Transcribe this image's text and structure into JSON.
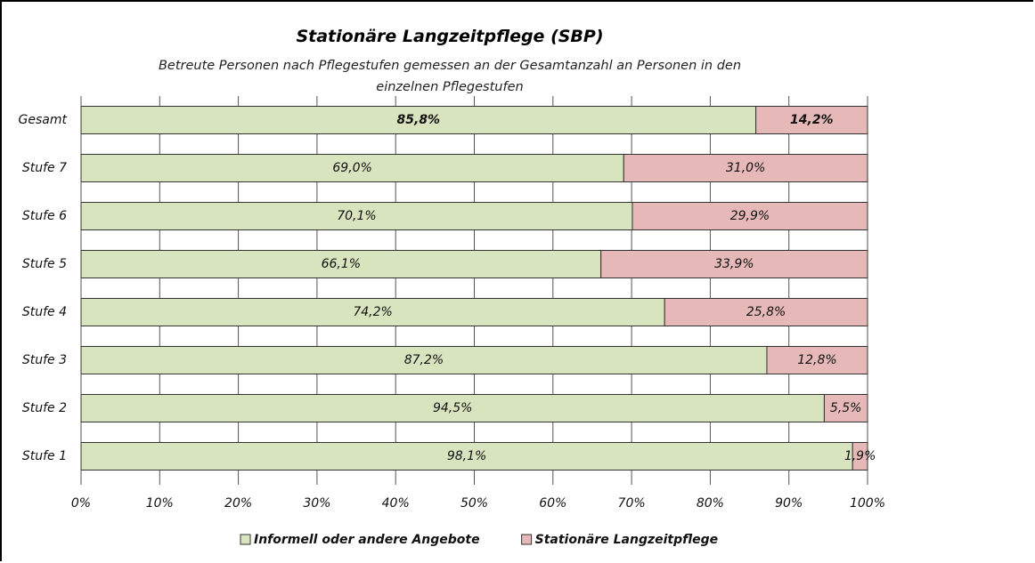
{
  "chart_data": {
    "type": "stacked_barh",
    "title": "Stationäre Langzeitpflege (SBP)",
    "subtitle": "Betreute Personen nach Pflegestufen gemessen an der Gesamtanzahl  an Personen in den einzelnen Pflegestufen",
    "categories": [
      "Gesamt",
      "Stufe 7",
      "Stufe 6",
      "Stufe 5",
      "Stufe 4",
      "Stufe 3",
      "Stufe 2",
      "Stufe 1"
    ],
    "series": [
      {
        "name": "Informell oder andere Angebote",
        "color": "#d7e4bd",
        "values": [
          85.8,
          69.0,
          70.1,
          66.1,
          74.2,
          87.2,
          94.5,
          98.1
        ],
        "value_labels": [
          "85,8%",
          "69,0%",
          "70,1%",
          "66,1%",
          "74,2%",
          "87,2%",
          "94,5%",
          "98,1%"
        ]
      },
      {
        "name": "Stationäre Langzeitpflege",
        "color": "#e6b9b8",
        "values": [
          14.2,
          31.0,
          29.9,
          33.9,
          25.8,
          12.8,
          5.5,
          1.9
        ],
        "value_labels": [
          "14,2%",
          "31,0%",
          "29,9%",
          "33,9%",
          "25,8%",
          "12,8%",
          "5,5%",
          "1,9%"
        ]
      }
    ],
    "xlim": [
      0,
      100
    ],
    "xticks": [
      {
        "value": 0,
        "label": "0%"
      },
      {
        "value": 10,
        "label": "10%"
      },
      {
        "value": 20,
        "label": "20%"
      },
      {
        "value": 30,
        "label": "30%"
      },
      {
        "value": 40,
        "label": "40%"
      },
      {
        "value": 50,
        "label": "50%"
      },
      {
        "value": 60,
        "label": "60%"
      },
      {
        "value": 70,
        "label": "70%"
      },
      {
        "value": 80,
        "label": "80%"
      },
      {
        "value": 90,
        "label": "90%"
      },
      {
        "value": 100,
        "label": "100%"
      }
    ],
    "grid": true,
    "legend": "bottom"
  }
}
